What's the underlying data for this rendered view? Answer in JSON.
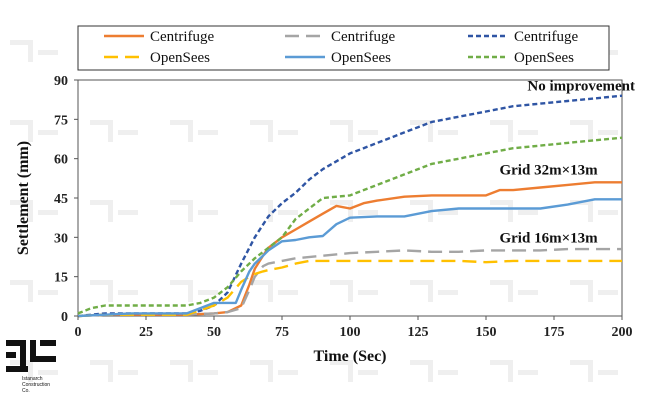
{
  "chart_data": {
    "type": "line",
    "title": "",
    "xlabel": "Time (Sec)",
    "ylabel": "Settlement (mm)",
    "xlim": [
      0,
      200
    ],
    "ylim": [
      0,
      90
    ],
    "x_ticks": [
      0,
      25,
      50,
      75,
      100,
      125,
      150,
      175,
      200
    ],
    "y_ticks": [
      0,
      15,
      30,
      45,
      60,
      75,
      90
    ],
    "grid": false,
    "legend_position": "top",
    "annotations": [
      {
        "text": "No improvement",
        "x": 185,
        "y": 86
      },
      {
        "text": "Grid 32m×13m",
        "x": 173,
        "y": 54
      },
      {
        "text": "Grid 16m×13m",
        "x": 173,
        "y": 28
      }
    ],
    "series": [
      {
        "name": "Centrifuge",
        "color": "#ED7D31",
        "dash": "solid",
        "x": [
          0,
          10,
          20,
          30,
          40,
          50,
          55,
          60,
          63,
          65,
          68,
          70,
          75,
          80,
          85,
          90,
          95,
          100,
          105,
          110,
          120,
          130,
          140,
          150,
          155,
          160,
          170,
          180,
          190,
          200
        ],
        "y": [
          0,
          0.5,
          0.5,
          0.5,
          0.5,
          1,
          1.5,
          4,
          12,
          18,
          23,
          26,
          30,
          33,
          36,
          39,
          42,
          41,
          43,
          44,
          45.5,
          46,
          46,
          46,
          48,
          48,
          49,
          50,
          51,
          51
        ]
      },
      {
        "name": "Centrifuge",
        "color": "#A5A5A5",
        "dash": "long",
        "x": [
          0,
          10,
          20,
          30,
          40,
          50,
          55,
          60,
          63,
          65,
          68,
          70,
          75,
          80,
          90,
          100,
          110,
          120,
          130,
          140,
          150,
          160,
          170,
          180,
          190,
          200
        ],
        "y": [
          0,
          0.5,
          0.5,
          0.5,
          0.5,
          1,
          1.5,
          3,
          10,
          15,
          19,
          20,
          21,
          22,
          23,
          24,
          24.5,
          25,
          24.5,
          24.5,
          25,
          25,
          25,
          25.5,
          25.5,
          25.5
        ]
      },
      {
        "name": "Centrifuge",
        "color": "#2F55A4",
        "dash": "short",
        "x": [
          0,
          10,
          20,
          30,
          40,
          45,
          50,
          55,
          60,
          65,
          70,
          75,
          80,
          85,
          90,
          95,
          100,
          105,
          110,
          115,
          120,
          125,
          130,
          140,
          150,
          160,
          170,
          180,
          190,
          200
        ],
        "y": [
          0,
          1,
          1,
          1,
          1,
          2,
          4,
          9,
          20,
          30,
          38,
          43,
          47,
          52,
          56,
          59,
          62,
          64,
          66,
          68,
          70,
          72,
          74,
          76,
          78,
          80,
          81,
          82,
          83,
          84
        ]
      },
      {
        "name": "OpenSees",
        "color": "#FFC000",
        "dash": "long",
        "x": [
          0,
          10,
          20,
          30,
          40,
          50,
          55,
          60,
          63,
          65,
          68,
          70,
          75,
          80,
          85,
          90,
          100,
          110,
          120,
          130,
          140,
          150,
          160,
          170,
          180,
          190,
          200
        ],
        "y": [
          0,
          0.5,
          0.5,
          0.5,
          0.5,
          4,
          7,
          13,
          15,
          16,
          17,
          17.5,
          18.5,
          20,
          21,
          21,
          21,
          21,
          21,
          21,
          21,
          20.5,
          21,
          21,
          21,
          21,
          21
        ]
      },
      {
        "name": "OpenSees",
        "color": "#5B9BD5",
        "dash": "solid",
        "x": [
          0,
          10,
          20,
          30,
          40,
          45,
          50,
          55,
          58,
          60,
          63,
          65,
          68,
          70,
          75,
          80,
          85,
          90,
          95,
          100,
          110,
          120,
          130,
          140,
          150,
          160,
          170,
          180,
          190,
          200
        ],
        "y": [
          0,
          0.5,
          1,
          1,
          1,
          3,
          5,
          5,
          5,
          10,
          17,
          20,
          23,
          25,
          28.5,
          29,
          30,
          30.5,
          35,
          37.5,
          38,
          38,
          40,
          41,
          41,
          41,
          41,
          42.5,
          44.5,
          44.5
        ]
      },
      {
        "name": "OpenSees",
        "color": "#70AD47",
        "dash": "short",
        "x": [
          0,
          5,
          10,
          20,
          30,
          40,
          45,
          50,
          55,
          60,
          65,
          70,
          75,
          80,
          85,
          90,
          95,
          100,
          110,
          120,
          130,
          140,
          150,
          160,
          170,
          180,
          190,
          200
        ],
        "y": [
          1,
          3,
          4,
          4,
          4,
          4,
          5,
          7,
          11,
          17,
          22,
          26,
          30,
          37,
          41,
          45,
          45.5,
          46,
          50,
          54,
          58,
          60,
          62,
          64,
          65,
          66,
          67,
          68
        ]
      }
    ]
  },
  "logo": {
    "text": "Istanarch Construction Co."
  }
}
